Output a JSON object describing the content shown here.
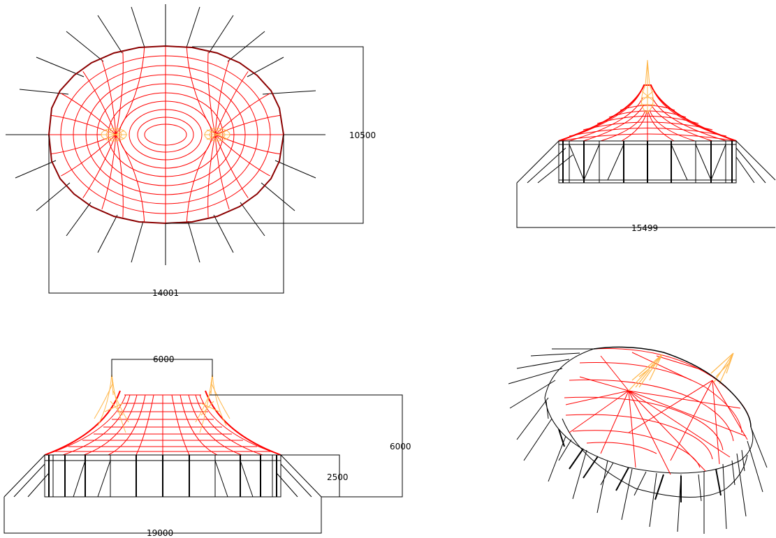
{
  "colors": {
    "mesh": "#ff0000",
    "outline": "#8b0000",
    "mast": "#ffb84d",
    "structure": "#000000",
    "background": "#ffffff"
  },
  "plan": {
    "width_dim": "14001",
    "depth_dim": "10500"
  },
  "side": {
    "width_dim": "15499"
  },
  "front": {
    "mast_spacing_dim": "6000",
    "height_dim": "6000",
    "wall_height_dim": "2500",
    "width_dim": "19000"
  },
  "iso": {}
}
